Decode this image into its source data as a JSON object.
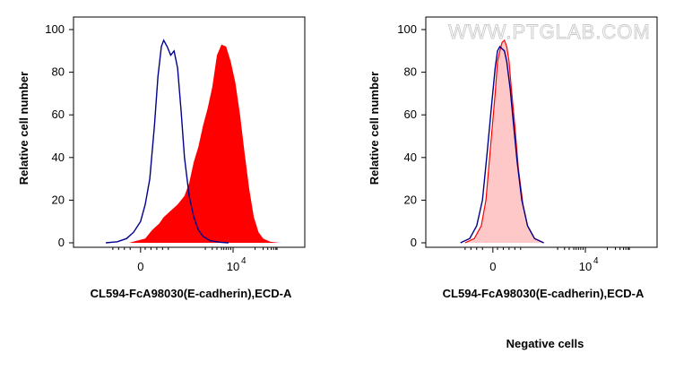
{
  "chart_data": [
    {
      "type": "area",
      "ylabel": "Relative cell number",
      "xlabel": "CL594-FcA98030(E-cadherin),ECD-A",
      "ylim": [
        0,
        100
      ],
      "y_ticks": [
        "0",
        "20",
        "40",
        "60",
        "80",
        "100"
      ],
      "x_ticks": [
        {
          "label": "0",
          "value": 0
        },
        {
          "label": "10",
          "sup": "4",
          "value": 4
        }
      ],
      "xlim": [
        -2.9,
        7.1
      ],
      "grid": false,
      "series": [
        {
          "style": "filled",
          "color": "#ff0000",
          "x": [
            -0.5,
            0.2,
            0.5,
            0.8,
            1.0,
            1.3,
            1.6,
            1.9,
            2.1,
            2.3,
            2.5,
            2.7,
            2.9,
            3.1,
            3.3,
            3.5,
            3.7,
            3.9,
            4.1,
            4.3,
            4.5,
            4.7,
            4.9,
            5.1,
            5.3,
            5.6,
            6.0
          ],
          "y": [
            0,
            2,
            6,
            9,
            12,
            15,
            18,
            22,
            28,
            38,
            45,
            55,
            63,
            73,
            88,
            93,
            92,
            85,
            75,
            60,
            42,
            25,
            12,
            5,
            2,
            0.5,
            0
          ]
        },
        {
          "style": "line",
          "color": "#00008b",
          "x": [
            -1.5,
            -1.0,
            -0.6,
            -0.3,
            0.0,
            0.2,
            0.4,
            0.6,
            0.75,
            0.9,
            1.0,
            1.15,
            1.3,
            1.45,
            1.6,
            1.75,
            1.9,
            2.1,
            2.3,
            2.5,
            2.7,
            3.0,
            3.4,
            3.8
          ],
          "y": [
            0,
            0.5,
            2,
            5,
            10,
            18,
            30,
            55,
            78,
            92,
            95,
            92,
            88,
            90,
            82,
            62,
            40,
            22,
            12,
            6,
            3,
            1,
            0.3,
            0
          ]
        }
      ]
    },
    {
      "type": "area",
      "ylabel": "Relative cell number",
      "xlabel": "CL594-FcA98030(E-cadherin),ECD-A",
      "ylim": [
        0,
        100
      ],
      "y_ticks": [
        "0",
        "20",
        "40",
        "60",
        "80",
        "100"
      ],
      "x_ticks": [
        {
          "label": "0",
          "value": 0
        },
        {
          "label": "10",
          "sup": "4",
          "value": 4
        }
      ],
      "xlim": [
        -2.9,
        7.1
      ],
      "grid": false,
      "series": [
        {
          "style": "filled-outline",
          "color": "#ff0000",
          "fill": "#ffc8c8",
          "x": [
            -1.2,
            -0.8,
            -0.5,
            -0.3,
            -0.1,
            0.1,
            0.2,
            0.3,
            0.4,
            0.5,
            0.6,
            0.7,
            0.8,
            0.95,
            1.1,
            1.3,
            1.5,
            1.8,
            2.2
          ],
          "y": [
            0,
            2,
            8,
            20,
            45,
            70,
            85,
            90,
            94,
            95,
            92,
            85,
            72,
            55,
            35,
            18,
            8,
            2,
            0
          ]
        },
        {
          "style": "line",
          "color": "#00008b",
          "x": [
            -1.4,
            -1.0,
            -0.7,
            -0.45,
            -0.25,
            -0.05,
            0.1,
            0.2,
            0.3,
            0.4,
            0.5,
            0.6,
            0.75,
            0.9,
            1.05,
            1.25,
            1.5,
            1.8,
            2.2
          ],
          "y": [
            0,
            2,
            8,
            20,
            42,
            65,
            82,
            90,
            92,
            91,
            90,
            85,
            72,
            55,
            38,
            20,
            8,
            2,
            0
          ]
        }
      ]
    }
  ],
  "watermark": "WWW.PTGLAB.COM",
  "caption": "Negative cells"
}
